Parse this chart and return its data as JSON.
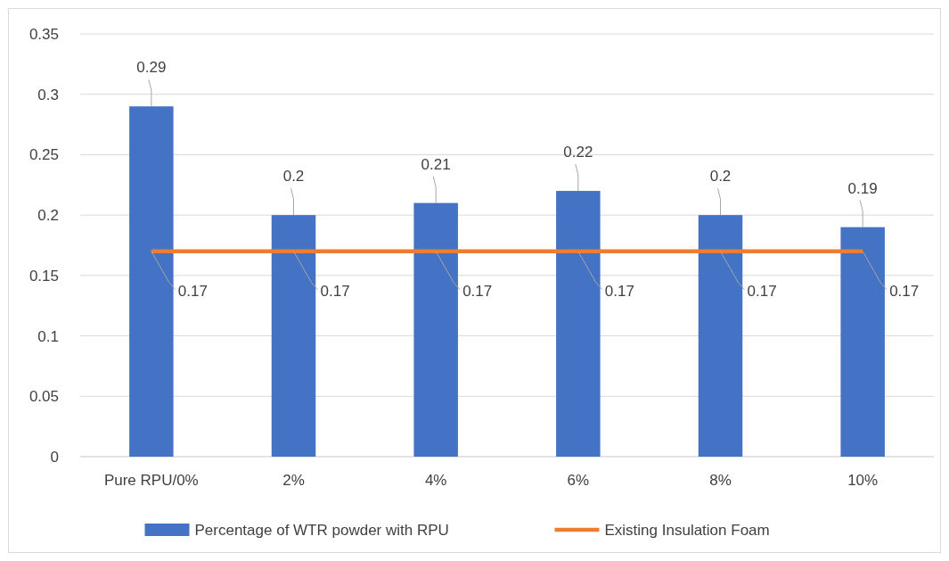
{
  "chart_data": {
    "type": "bar",
    "categories": [
      "Pure RPU/0%",
      "2%",
      "4%",
      "6%",
      "8%",
      "10%"
    ],
    "series": [
      {
        "name": "Percentage of WTR powder with RPU",
        "color": "#4472c4",
        "values": [
          0.29,
          0.2,
          0.21,
          0.22,
          0.2,
          0.19
        ]
      },
      {
        "name": "Existing Insulation Foam",
        "type": "line",
        "color": "#ed7d31",
        "values": [
          0.17,
          0.17,
          0.17,
          0.17,
          0.17,
          0.17
        ]
      }
    ],
    "ylim": [
      0,
      0.35
    ],
    "yticks": [
      0,
      0.05,
      0.1,
      0.15,
      0.2,
      0.25,
      0.3,
      0.35
    ],
    "grid": "y",
    "legend": "bottom",
    "data_labels": true,
    "marker": "none",
    "line_style": "solid"
  }
}
